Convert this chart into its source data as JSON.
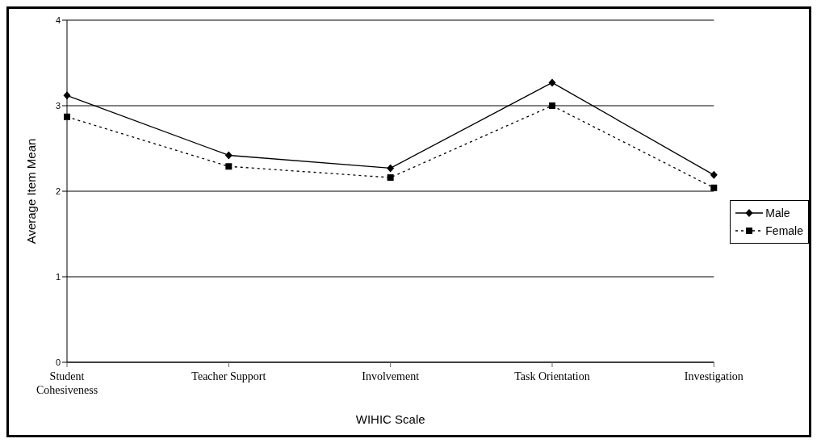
{
  "chart_data": {
    "type": "line",
    "xlabel": "WIHIC Scale",
    "ylabel": "Average Item Mean",
    "categories": [
      "Student Cohesiveness",
      "Teacher Support",
      "Involvement",
      "Task Orientation",
      "Investigation"
    ],
    "series": [
      {
        "name": "Male",
        "color": "#000000",
        "values": [
          3.12,
          2.42,
          2.27,
          3.27,
          2.19
        ],
        "marker": "diamond",
        "line_style": "solid"
      },
      {
        "name": "Female",
        "color": "#000000",
        "values": [
          2.87,
          2.29,
          2.16,
          3.0,
          2.04
        ],
        "marker": "square",
        "line_style": "dotted"
      }
    ],
    "ylim": [
      0,
      4
    ],
    "yticks": [
      0,
      1,
      2,
      3,
      4
    ],
    "grid": "y",
    "legend": "right"
  }
}
